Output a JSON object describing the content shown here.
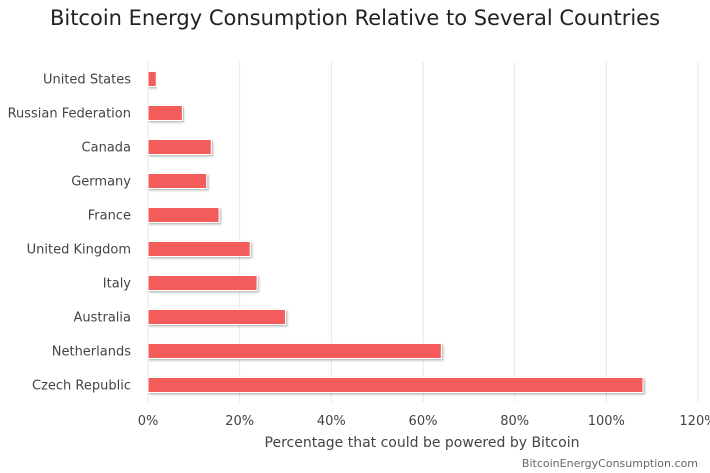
{
  "chart_data": {
    "type": "bar",
    "orientation": "horizontal",
    "title": "Bitcoin Energy Consumption Relative to Several Countries",
    "xlabel": "Percentage that could be powered by Bitcoin",
    "ylabel": "",
    "categories": [
      "United States",
      "Russian Federation",
      "Canada",
      "Germany",
      "France",
      "United Kingdom",
      "Italy",
      "Australia",
      "Netherlands",
      "Czech Republic"
    ],
    "values": [
      1.8,
      7.5,
      13.8,
      12.8,
      15.5,
      22.3,
      23.8,
      30.0,
      64.0,
      108.0
    ],
    "xlim": [
      0,
      120
    ],
    "xticks": [
      "0%",
      "20%",
      "40%",
      "60%",
      "80%",
      "100%",
      "120%"
    ],
    "grid": true,
    "legend": "none",
    "bar_color": "#f45b5b",
    "credit": "BitcoinEnergyConsumption.com"
  }
}
